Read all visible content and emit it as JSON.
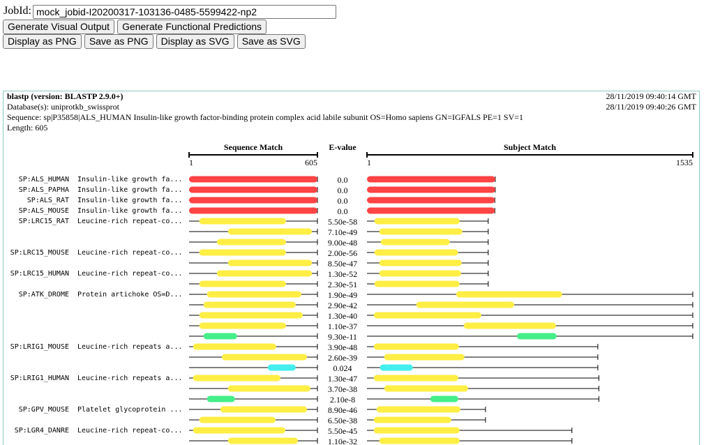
{
  "header": {
    "jobid_label": "JobId:",
    "jobid_value": "mock_jobid-I20200317-103136-0485-5599422-np2",
    "buttons_row1": [
      "Generate Visual Output",
      "Generate Functional Predictions"
    ],
    "buttons_row2": [
      "Display as PNG",
      "Save as PNG",
      "Display as SVG",
      "Save as SVG"
    ]
  },
  "report": {
    "program": "blastp (version: BLASTP 2.9.0+)",
    "database": "Database(s): uniprotkb_swissprot",
    "sequence": "Sequence: sp|P35858|ALS_HUMAN Insulin-like growth factor-binding protein complex acid labile subunit OS=Homo sapiens GN=IGFALS PE=1 SV=1",
    "length": "Length: 605",
    "dates": [
      "28/11/2019 09:40:14 GMT",
      "28/11/2019 09:40:26 GMT"
    ],
    "headers": {
      "query": "Sequence Match",
      "evalue": "E-value",
      "subject": "Subject Match"
    },
    "query_scale": [
      1,
      605
    ],
    "subject_scale": [
      1,
      1535
    ],
    "hits": [
      {
        "id": "SP:ALS_HUMAN",
        "desc": "Insulin-like growth fa...",
        "evalue": "0.0",
        "qstart": 1,
        "qend": 605,
        "sstart": 1,
        "send": 605,
        "slen": 605,
        "color": "#ff4444"
      },
      {
        "id": "SP:ALS_PAPHA",
        "desc": "Insulin-like growth fa...",
        "evalue": "0.0",
        "qstart": 1,
        "qend": 605,
        "sstart": 1,
        "send": 605,
        "slen": 605,
        "color": "#ff4444"
      },
      {
        "id": "SP:ALS_RAT",
        "desc": "Insulin-like growth fa...",
        "evalue": "0.0",
        "qstart": 1,
        "qend": 605,
        "sstart": 1,
        "send": 603,
        "slen": 603,
        "color": "#ff4444"
      },
      {
        "id": "SP:ALS_MOUSE",
        "desc": "Insulin-like growth fa...",
        "evalue": "0.0",
        "qstart": 1,
        "qend": 605,
        "sstart": 1,
        "send": 603,
        "slen": 603,
        "color": "#ff4444"
      },
      {
        "id": "SP:LRC15_RAT",
        "desc": "Leucine-rich repeat-co...",
        "evalue": "5.50e-58",
        "qstart": 49,
        "qend": 457,
        "sstart": 36,
        "send": 437,
        "slen": 572,
        "color": "#ffee44"
      },
      {
        "evalue": "7.10e-49",
        "qstart": 184,
        "qend": 579,
        "sstart": 59,
        "send": 450,
        "slen": 572,
        "color": "#ffee44"
      },
      {
        "evalue": "9.00e-48",
        "qstart": 132,
        "qend": 457,
        "sstart": 66,
        "send": 391,
        "slen": 572,
        "color": "#ffee44"
      },
      {
        "id": "SP:LRC15_MOUSE",
        "desc": "Leucine-rich repeat-co...",
        "evalue": "2.00e-56",
        "qstart": 49,
        "qend": 457,
        "sstart": 36,
        "send": 430,
        "slen": 572,
        "color": "#ffee44"
      },
      {
        "evalue": "8.50e-47",
        "qstart": 184,
        "qend": 579,
        "sstart": 59,
        "send": 447,
        "slen": 572,
        "color": "#ffee44"
      },
      {
        "id": "SP:LRC15_HUMAN",
        "desc": "Leucine-rich repeat-co...",
        "evalue": "1.30e-52",
        "qstart": 132,
        "qend": 579,
        "sstart": 59,
        "send": 444,
        "slen": 572,
        "color": "#ffee44"
      },
      {
        "evalue": "2.30e-51",
        "qstart": 49,
        "qend": 457,
        "sstart": 36,
        "send": 437,
        "slen": 572,
        "color": "#ffee44"
      },
      {
        "id": "SP:ATK_DROME",
        "desc": "Protein artichoke OS=D...",
        "evalue": "1.90e-49",
        "qstart": 85,
        "qend": 529,
        "sstart": 421,
        "send": 920,
        "slen": 1535,
        "color": "#ffee44"
      },
      {
        "evalue": "2.90e-42",
        "qstart": 69,
        "qend": 503,
        "sstart": 233,
        "send": 694,
        "slen": 1535,
        "color": "#ffee44"
      },
      {
        "evalue": "1.30e-40",
        "qstart": 49,
        "qend": 536,
        "sstart": 33,
        "send": 539,
        "slen": 1535,
        "color": "#ffee44"
      },
      {
        "evalue": "1.10e-37",
        "qstart": 49,
        "qend": 457,
        "sstart": 457,
        "send": 891,
        "slen": 1535,
        "color": "#ffee44"
      },
      {
        "evalue": "9.30e-11",
        "qstart": 69,
        "qend": 227,
        "sstart": 707,
        "send": 894,
        "slen": 1535,
        "color": "#44ee88"
      },
      {
        "id": "SP:LRIG1_MOUSE",
        "desc": "Leucine-rich repeats a...",
        "evalue": "3.90e-48",
        "qstart": 20,
        "qend": 411,
        "sstart": 33,
        "send": 434,
        "slen": 1088,
        "color": "#ffee44"
      },
      {
        "evalue": "2.60e-39",
        "qstart": 155,
        "qend": 556,
        "sstart": 82,
        "send": 460,
        "slen": 1088,
        "color": "#ffee44"
      },
      {
        "evalue": "0.024",
        "qstart": 371,
        "qend": 503,
        "sstart": 62,
        "send": 217,
        "slen": 1088,
        "color": "#44eeee"
      },
      {
        "id": "SP:LRIG1_HUMAN",
        "desc": "Leucine-rich repeats a...",
        "evalue": "1.30e-47",
        "qstart": 20,
        "qend": 431,
        "sstart": 33,
        "send": 431,
        "slen": 1093,
        "color": "#ffee44"
      },
      {
        "evalue": "3.70e-38",
        "qstart": 184,
        "qend": 572,
        "sstart": 82,
        "send": 477,
        "slen": 1093,
        "color": "#ffee44"
      },
      {
        "evalue": "2.10e-8",
        "qstart": 85,
        "qend": 217,
        "sstart": 299,
        "send": 431,
        "slen": 1093,
        "color": "#44ee88"
      },
      {
        "id": "SP:GPV_MOUSE",
        "desc": "Platelet glycoprotein ...",
        "evalue": "8.90e-46",
        "qstart": 148,
        "qend": 556,
        "sstart": 46,
        "send": 441,
        "slen": 559,
        "color": "#ffee44"
      },
      {
        "evalue": "6.50e-38",
        "qstart": 49,
        "qend": 408,
        "sstart": 33,
        "send": 398,
        "slen": 559,
        "color": "#ffee44"
      },
      {
        "id": "SP:LGR4_DANRE",
        "desc": "Leucine-rich repeat-co...",
        "evalue": "5.50e-45",
        "qstart": 20,
        "qend": 454,
        "sstart": 33,
        "send": 437,
        "slen": 966,
        "color": "#ffee44"
      },
      {
        "evalue": "1.10e-32",
        "qstart": 184,
        "qend": 513,
        "sstart": 59,
        "send": 437,
        "slen": 966,
        "color": "#ffee44"
      }
    ]
  }
}
